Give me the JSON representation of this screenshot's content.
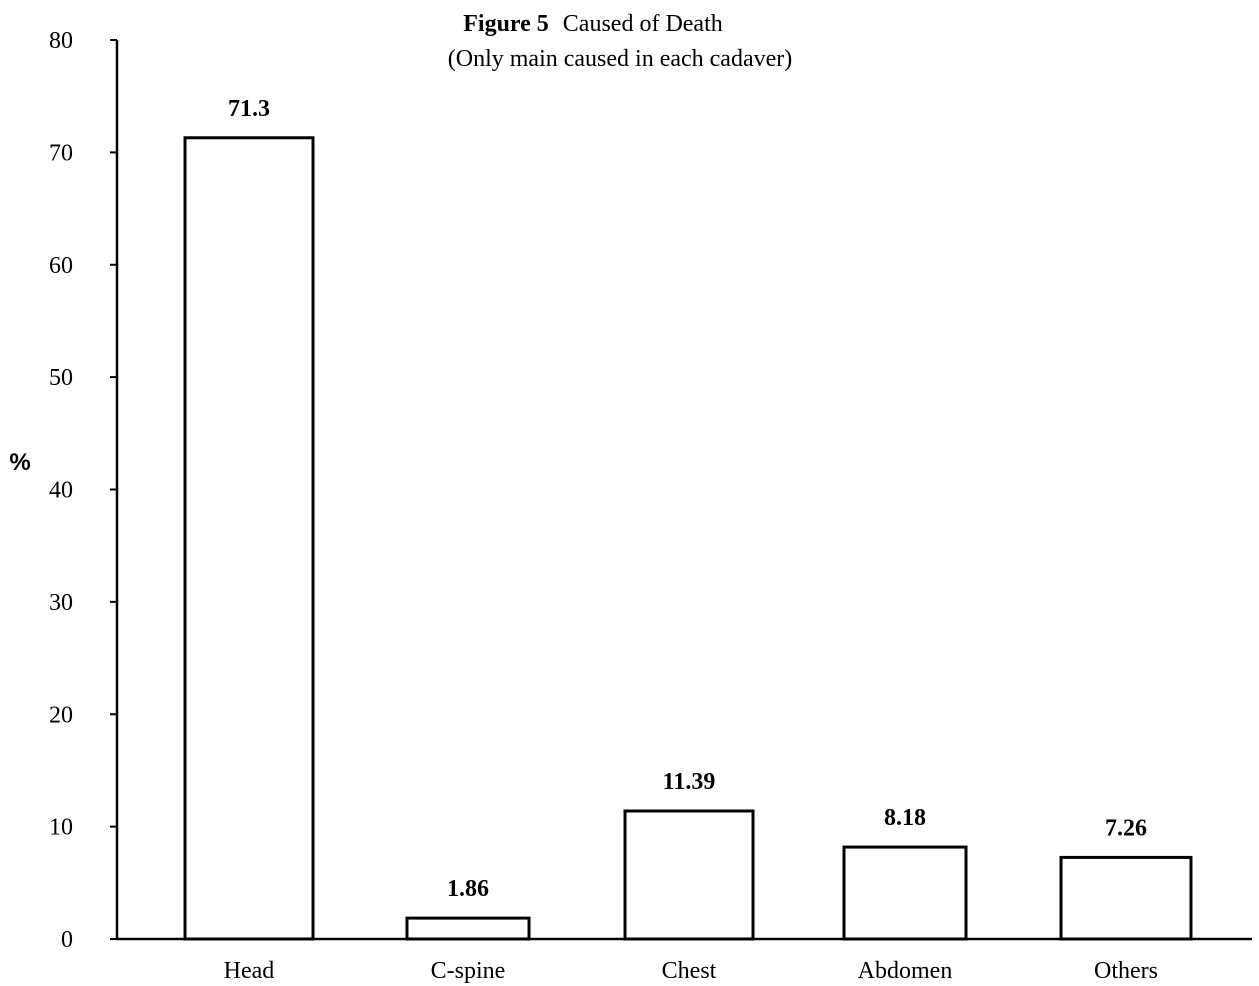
{
  "chart_data": {
    "type": "bar",
    "title": {
      "prefix": "Figure 5",
      "main": "Caused of Death"
    },
    "subtitle": "(Only main caused in each cadaver)",
    "xlabel": "",
    "ylabel": "%",
    "ylim": [
      0,
      80
    ],
    "yticks": [
      0,
      10,
      20,
      30,
      40,
      50,
      60,
      70,
      80
    ],
    "categories": [
      "Head",
      "C-spine",
      "Chest",
      "Abdomen",
      "Others"
    ],
    "values": [
      71.3,
      1.86,
      11.39,
      8.18,
      7.26
    ],
    "value_labels": [
      "71.3",
      "1.86",
      "11.39",
      "8.18",
      "7.26"
    ],
    "grid": false,
    "legend": "none",
    "colors": {
      "bar_fill": "#ffffff",
      "bar_stroke": "#000000",
      "axis": "#000000"
    }
  }
}
